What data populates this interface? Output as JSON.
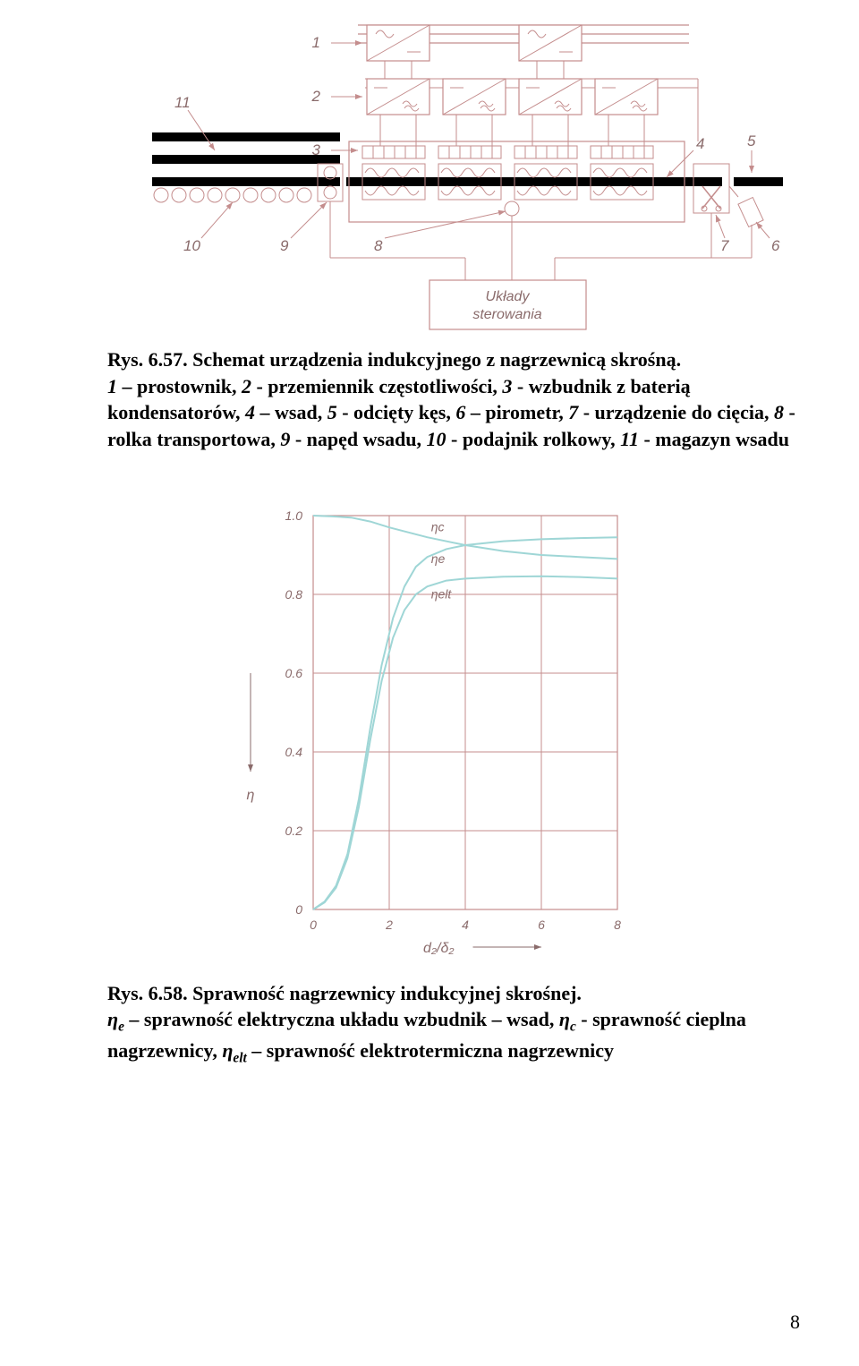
{
  "figure1": {
    "labels": {
      "one": "1",
      "two": "2",
      "three": "3",
      "four": "4",
      "five": "5",
      "six": "6",
      "seven": "7",
      "eight": "8",
      "nine": "9",
      "ten": "10",
      "eleven": "11",
      "box_line1": "Układy",
      "box_line2": "sterowania"
    },
    "colors": {
      "line_red": "#c48d8d",
      "black": "#000000",
      "white": "#ffffff"
    },
    "stroke_width": 1.2
  },
  "caption1": {
    "ref": "Rys. 6.57. Schemat urządzenia indukcyjnego z nagrzewnicą skrośną.",
    "body": "1 – prostownik, 2 - przemiennik częstotliwości, 3 - wzbudnik z baterią kondensatorów, 4 – wsad, 5 - odcięty kęs, 6 – pirometr, 7 - urządzenie do cięcia, 8 - rolka transportowa, 9 - napęd wsadu, 10 - podajnik rolkowy, 11 - magazyn wsadu"
  },
  "figure2": {
    "chart": {
      "type": "line",
      "xlim": [
        0,
        8
      ],
      "ylim": [
        0,
        1.0
      ],
      "xticks": [
        0,
        2,
        4,
        6,
        8
      ],
      "yticks": [
        0,
        0.2,
        0.4,
        0.6,
        0.8,
        1.0
      ],
      "xlabel": "d₂/δ₂",
      "ylabel": "η",
      "grid_color": "#c48d8d",
      "axis_color": "#c48d8d",
      "curve_color": "#9fd6d6",
      "bg": "#ffffff",
      "label_fontsize": 14,
      "tick_fontsize": 14,
      "series": [
        {
          "name": "ηc",
          "label": "ηc",
          "label_x": 3.1,
          "label_y": 0.96,
          "points": [
            [
              0,
              1.0
            ],
            [
              0.5,
              0.998
            ],
            [
              1.0,
              0.995
            ],
            [
              1.5,
              0.985
            ],
            [
              2.0,
              0.97
            ],
            [
              3.0,
              0.945
            ],
            [
              4.0,
              0.925
            ],
            [
              5.0,
              0.91
            ],
            [
              6.0,
              0.9
            ],
            [
              7.0,
              0.895
            ],
            [
              8.0,
              0.89
            ]
          ]
        },
        {
          "name": "ηe",
          "label": "ηe",
          "label_x": 3.1,
          "label_y": 0.88,
          "points": [
            [
              0,
              0.0
            ],
            [
              0.3,
              0.02
            ],
            [
              0.6,
              0.06
            ],
            [
              0.9,
              0.14
            ],
            [
              1.2,
              0.28
            ],
            [
              1.5,
              0.46
            ],
            [
              1.8,
              0.62
            ],
            [
              2.1,
              0.74
            ],
            [
              2.4,
              0.82
            ],
            [
              2.7,
              0.87
            ],
            [
              3.0,
              0.895
            ],
            [
              3.5,
              0.915
            ],
            [
              4.0,
              0.925
            ],
            [
              5.0,
              0.935
            ],
            [
              6.0,
              0.94
            ],
            [
              7.0,
              0.943
            ],
            [
              8.0,
              0.945
            ]
          ]
        },
        {
          "name": "ηelt",
          "label": "ηelt",
          "label_x": 3.1,
          "label_y": 0.79,
          "points": [
            [
              0,
              0.0
            ],
            [
              0.3,
              0.018
            ],
            [
              0.6,
              0.055
            ],
            [
              0.9,
              0.13
            ],
            [
              1.2,
              0.26
            ],
            [
              1.5,
              0.43
            ],
            [
              1.8,
              0.58
            ],
            [
              2.1,
              0.69
            ],
            [
              2.4,
              0.76
            ],
            [
              2.7,
              0.8
            ],
            [
              3.0,
              0.82
            ],
            [
              3.5,
              0.835
            ],
            [
              4.0,
              0.84
            ],
            [
              5.0,
              0.845
            ],
            [
              6.0,
              0.846
            ],
            [
              7.0,
              0.844
            ],
            [
              8.0,
              0.84
            ]
          ]
        }
      ]
    }
  },
  "caption2": {
    "ref": "Rys. 6.58. Sprawność nagrzewnicy indukcyjnej skrośnej.",
    "body_parts": [
      {
        "t": "η",
        "it": true
      },
      {
        "t": "e",
        "sub": true
      },
      {
        "t": " – sprawność elektryczna układu wzbudnik – wsad, "
      },
      {
        "t": "η",
        "it": true
      },
      {
        "t": "c",
        "sub": true
      },
      {
        "t": " -  sprawność cieplna nagrzewnicy, "
      },
      {
        "t": "η",
        "it": true
      },
      {
        "t": "elt",
        "sub": true
      },
      {
        "t": " – sprawność elektrotermiczna nagrzewnicy"
      }
    ]
  },
  "page_number": "8"
}
